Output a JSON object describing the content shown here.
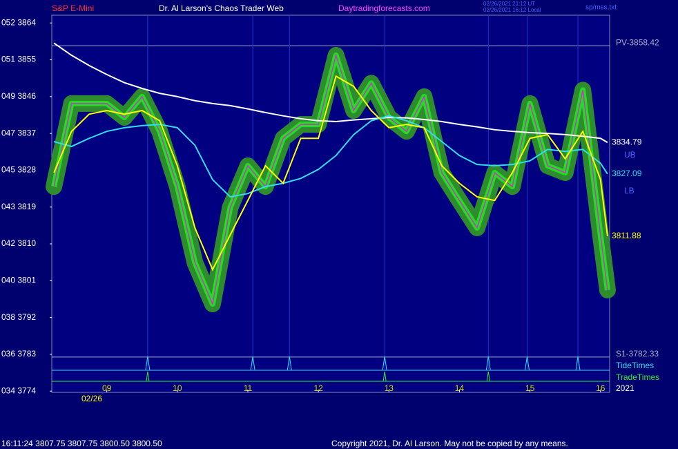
{
  "header": {
    "symbol": "S&P E-Mini",
    "site": "Dr. Al Larson's Chaos Trader Web",
    "url": "Daytradingforecasts.com",
    "time_ut": "02/26/2021 21:12 UT",
    "time_local": "02/26/2021 16:12 Local",
    "file": "sp/mss.txt"
  },
  "footer": {
    "quote": "16:11:24  3807.75 3807.75 3800.50 3800.50",
    "copyright": "Copyright 2021, Dr. Al Larson. May not be copied by any means."
  },
  "chart_data": {
    "type": "line",
    "date_label": "02/26",
    "year_label": "2021",
    "x": [
      8.25,
      8.5,
      8.75,
      9,
      9.25,
      9.5,
      9.75,
      10,
      10.25,
      10.5,
      10.75,
      11,
      11.25,
      11.5,
      11.75,
      12,
      12.25,
      12.5,
      12.75,
      13,
      13.25,
      13.5,
      13.75,
      14,
      14.25,
      14.5,
      14.75,
      15,
      15.25,
      15.5,
      15.75,
      16,
      16.1
    ],
    "xlim": [
      8.22,
      16.13
    ],
    "xticks": [
      {
        "value": 9,
        "label": "09"
      },
      10,
      11,
      12,
      13,
      14,
      15,
      16
    ],
    "ylim": [
      3773.7,
      3865.9
    ],
    "yticks": [
      {
        "value": 3864,
        "label": "052  3864"
      },
      {
        "value": 3855,
        "label": "051  3855"
      },
      {
        "value": 3846,
        "label": "049  3846"
      },
      {
        "value": 3837,
        "label": "047  3837"
      },
      {
        "value": 3828,
        "label": "045  3828"
      },
      {
        "value": 3819,
        "label": "043  3819"
      },
      {
        "value": 3810,
        "label": "042  3810"
      },
      {
        "value": 3801,
        "label": "040  3801"
      },
      {
        "value": 3792,
        "label": "038  3792"
      },
      {
        "value": 3783,
        "label": "036  3783"
      },
      {
        "value": 3774,
        "label": "034  3774"
      }
    ],
    "levels": [
      {
        "value": 3858.42,
        "label": "PV-3858.42"
      },
      {
        "value": 3782.33,
        "label": "S1-3782.33"
      }
    ],
    "band_labels": [
      "UB",
      "LB"
    ],
    "tide_label": "TideTimes",
    "tide_times": [
      9.58,
      11.07,
      11.59,
      12.94,
      14.41,
      14.96,
      15.68
    ],
    "trade_label": "TradeTimes",
    "trade_times": [
      9.58,
      12.94,
      14.41
    ],
    "series": [
      {
        "color": "#2e8b2e",
        "halo": true,
        "values": [
          3824.0,
          3844.3,
          3844.3,
          3844.3,
          3840.9,
          3846.0,
          3837.5,
          3824.0,
          3805.4,
          3795.3,
          3818.9,
          3829.1,
          3824.0,
          3835.8,
          3839.2,
          3839.2,
          3856.1,
          3842.6,
          3849.3,
          3840.9,
          3837.5,
          3846.0,
          3827.4,
          3820.6,
          3813.9,
          3827.4,
          3824.0,
          3844.3,
          3829.1,
          3827.4,
          3847.6,
          3812.2,
          3798.7
        ]
      },
      {
        "color": "#ffffff",
        "end_label": true,
        "values": [
          3859.1,
          3856.1,
          3853.6,
          3851.4,
          3849.4,
          3848.0,
          3846.8,
          3846.0,
          3845.0,
          3844.3,
          3843.8,
          3843.0,
          3842.1,
          3841.3,
          3840.6,
          3840.1,
          3839.9,
          3840.3,
          3840.6,
          3840.9,
          3840.8,
          3840.4,
          3839.9,
          3839.2,
          3838.6,
          3837.9,
          3837.5,
          3837.2,
          3837.0,
          3836.7,
          3836.3,
          3835.8,
          3834.79
        ]
      },
      {
        "color": "#33ddee",
        "end_label": true,
        "values": [
          3835.0,
          3833.8,
          3835.8,
          3837.5,
          3838.4,
          3838.9,
          3839.2,
          3838.4,
          3834.1,
          3825.7,
          3821.5,
          3822.3,
          3824.0,
          3824.8,
          3826.0,
          3828.2,
          3831.6,
          3836.7,
          3840.1,
          3841.3,
          3840.1,
          3838.4,
          3835.0,
          3831.6,
          3829.4,
          3829.1,
          3829.4,
          3830.3,
          3833.1,
          3832.6,
          3833.1,
          3829.7,
          3827.09
        ]
      },
      {
        "color": "#ffff00",
        "end_label": true,
        "values": [
          3827.4,
          3837.5,
          3841.7,
          3842.6,
          3841.7,
          3842.6,
          3840.1,
          3829.1,
          3813.9,
          3803.7,
          3812.2,
          3820.6,
          3829.1,
          3824.8,
          3835.8,
          3835.8,
          3851.0,
          3848.5,
          3842.6,
          3838.4,
          3839.2,
          3838.4,
          3829.1,
          3824.8,
          3821.5,
          3820.6,
          3827.4,
          3835.8,
          3836.7,
          3830.8,
          3837.5,
          3825.7,
          3811.88
        ]
      }
    ]
  }
}
